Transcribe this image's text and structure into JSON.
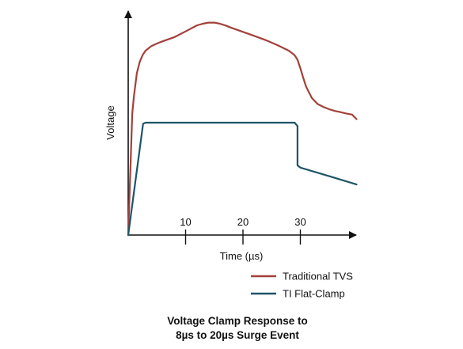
{
  "chart_data": {
    "type": "line",
    "title": "Voltage Clamp Response to",
    "subtitle": "8µs to 20µs Surge Event",
    "xlabel": "Time (µs)",
    "ylabel": "Voltage",
    "x_ticks": [
      10,
      20,
      30
    ],
    "xlim": [
      0,
      40
    ],
    "ylim": [
      0,
      100
    ],
    "grid": false,
    "legend_position": "bottom-right",
    "series": [
      {
        "name": "Traditional TVS",
        "color": "#a3403a",
        "x": [
          0,
          0.7,
          1.0,
          1.5,
          2.0,
          2.5,
          3.0,
          4.0,
          5.0,
          6.0,
          8.0,
          10.0,
          12.0,
          13.0,
          14.0,
          15.0,
          16.0,
          17.0,
          18.0,
          20.0,
          22.0,
          24.0,
          26.0,
          28.0,
          29.0,
          29.5,
          30.0,
          30.5,
          31.0,
          32.0,
          33.0,
          34.0,
          35.0,
          36.0,
          37.0,
          38.0,
          39.0,
          39.8
        ],
        "y": [
          0,
          54,
          62,
          72,
          77,
          80,
          82,
          84,
          85.2,
          86.2,
          88,
          90.6,
          93.3,
          94,
          94.5,
          94.5,
          94,
          93.2,
          92.2,
          90.4,
          88.6,
          86.7,
          84.5,
          82,
          80,
          78,
          74.2,
          70,
          66,
          61,
          58.3,
          57,
          56,
          55.2,
          54.7,
          54.1,
          53.6,
          51.6
        ]
      },
      {
        "name": "TI Flat-Clamp",
        "color": "#1d5568",
        "x": [
          0,
          2.6,
          3.0,
          4.0,
          10.0,
          20.0,
          29.0,
          29.5,
          29.5,
          30.0,
          35.0,
          39.8
        ],
        "y": [
          0,
          49.5,
          50,
          50,
          50,
          50,
          50,
          48.5,
          31,
          30,
          26.2,
          22.5
        ]
      }
    ]
  }
}
